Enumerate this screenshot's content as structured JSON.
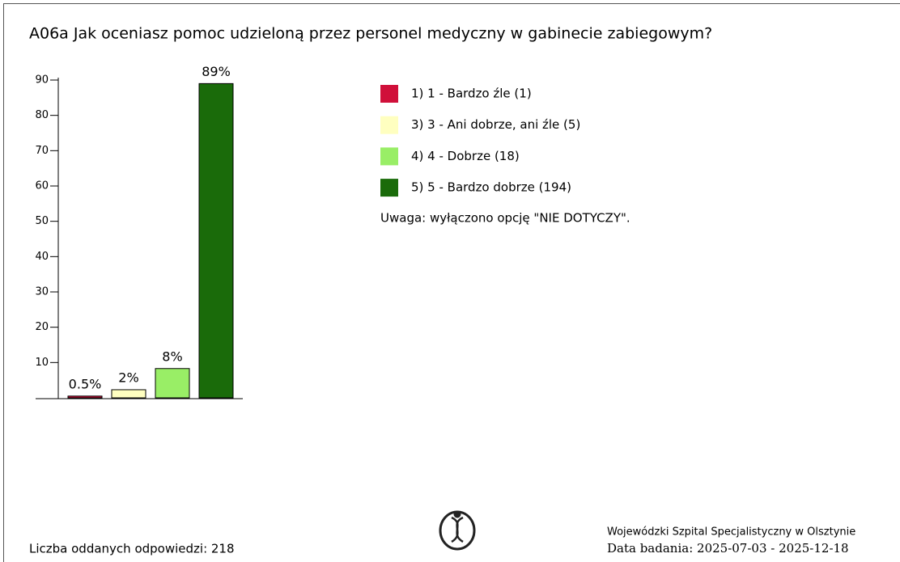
{
  "chart_data": {
    "type": "bar",
    "title": "A06a Jak oceniasz pomoc udzieloną przez personel medyczny w gabinecie zabiegowym?",
    "categories": [
      "1) 1 - Bardzo źle (1)",
      "3) 3 - Ani dobrze, ani źle (5)",
      "4) 4 - Dobrze (18)",
      "5) 5 - Bardzo dobrze (194)"
    ],
    "colors": [
      "#d0103a",
      "#ffffc0",
      "#99ee66",
      "#1a6b0a"
    ],
    "values": [
      0.5,
      2.3,
      8.3,
      89
    ],
    "value_labels": [
      "0.5%",
      "2%",
      "8%",
      "89%"
    ],
    "ylim": [
      0,
      90
    ],
    "yticks": [
      10,
      20,
      30,
      40,
      50,
      60,
      70,
      80,
      90
    ],
    "note": "Uwaga: wyłączono opcję \"NIE DOTYCZY\".",
    "responses": "Liczba oddanych odpowiedzi: 218",
    "institution": "Wojewódzki Szpital Specjalistyczny w Olsztynie",
    "survey_date": "Data badania: 2025-07-03 - 2025-12-18"
  }
}
